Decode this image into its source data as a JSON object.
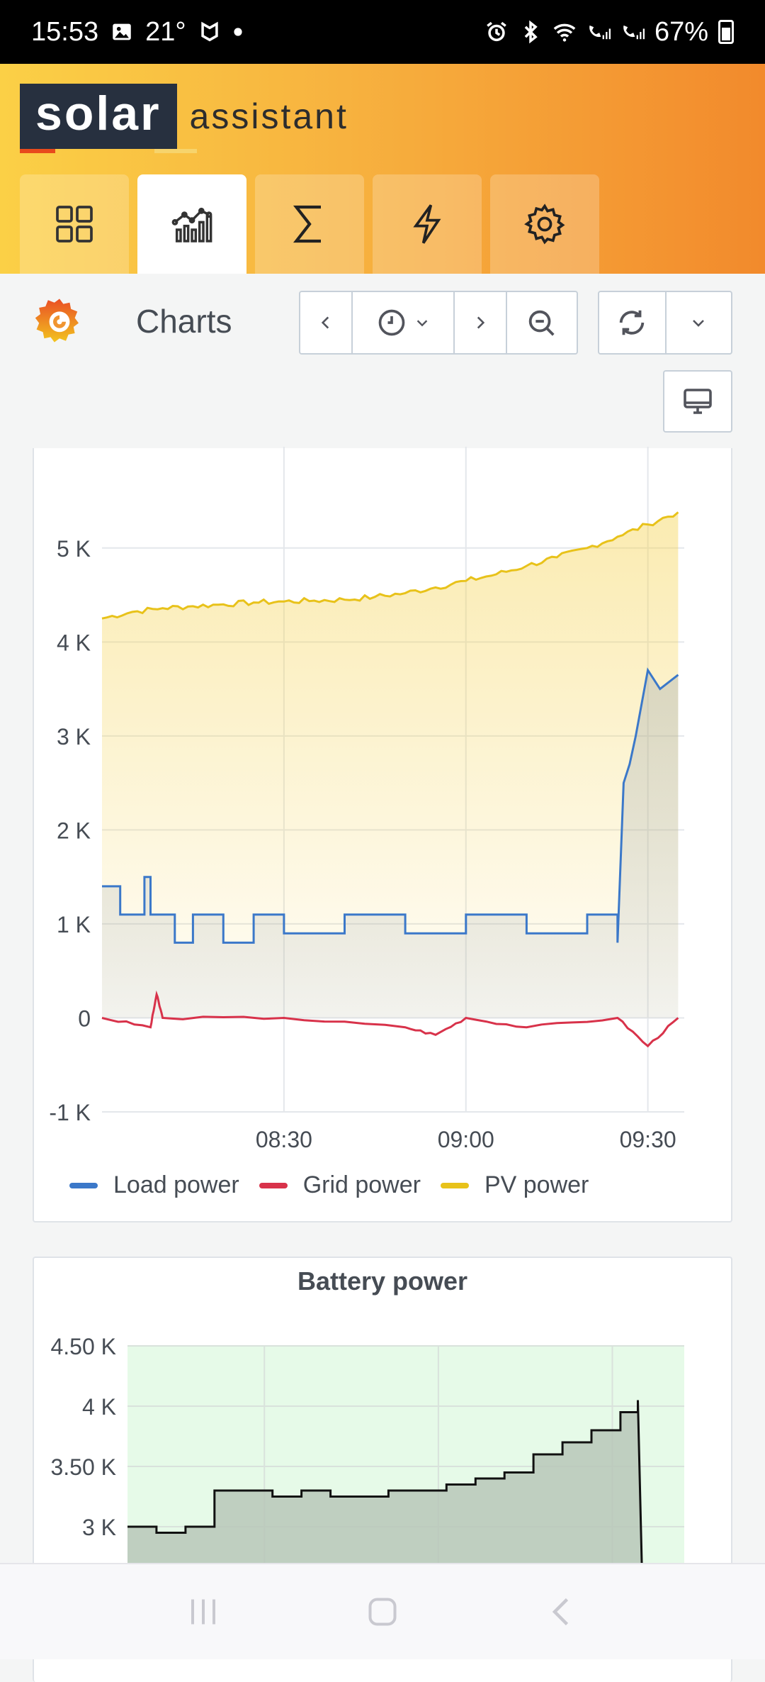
{
  "status_bar": {
    "time": "15:53",
    "temperature": "21°",
    "battery_percent": "67%"
  },
  "header": {
    "logo_primary": "solar",
    "logo_secondary": "assistant",
    "tabs": [
      {
        "icon": "dashboard-grid-icon"
      },
      {
        "icon": "chart-line-icon",
        "active": true
      },
      {
        "icon": "sigma-totals-icon"
      },
      {
        "icon": "lightning-bolt-icon"
      },
      {
        "icon": "gear-icon"
      }
    ]
  },
  "toolbar": {
    "title": "Charts",
    "buttons": [
      "chevron-left-icon",
      "clock-icon",
      "chevron-right-icon",
      "zoom-out-icon",
      "refresh-icon",
      "chevron-down-icon",
      "monitor-icon"
    ]
  },
  "chart_data": [
    {
      "type": "area",
      "title": "",
      "y_ticks": [
        "5 K",
        "4 K",
        "3 K",
        "2 K",
        "1 K",
        "0",
        "-1 K"
      ],
      "ylim": [
        -1000,
        5700
      ],
      "x_ticks": [
        "08:30",
        "09:00",
        "09:30"
      ],
      "xlim_minutes": [
        480,
        576
      ],
      "legend": [
        "Load power",
        "Grid power",
        "PV power"
      ],
      "series": [
        {
          "name": "PV power",
          "color": "#e8c21a",
          "x": [
            "08:00",
            "08:05",
            "08:10",
            "08:15",
            "08:20",
            "08:25",
            "08:30",
            "08:35",
            "08:40",
            "08:45",
            "08:50",
            "08:55",
            "09:00",
            "09:05",
            "09:10",
            "09:15",
            "09:20",
            "09:25",
            "09:30",
            "09:35"
          ],
          "values": [
            4250,
            4320,
            4360,
            4380,
            4400,
            4420,
            4430,
            4440,
            4450,
            4480,
            4520,
            4580,
            4650,
            4720,
            4810,
            4900,
            5000,
            5120,
            5250,
            5380
          ]
        },
        {
          "name": "Load power",
          "color": "#3b78c9",
          "x": [
            "08:00",
            "08:03",
            "08:07",
            "08:08",
            "08:12",
            "08:15",
            "08:20",
            "08:25",
            "08:30",
            "08:40",
            "08:50",
            "09:00",
            "09:10",
            "09:20",
            "09:25",
            "09:26",
            "09:27",
            "09:28",
            "09:30",
            "09:32",
            "09:35"
          ],
          "values": [
            1400,
            1100,
            1500,
            1100,
            800,
            1100,
            800,
            1100,
            900,
            1100,
            900,
            1100,
            900,
            1100,
            800,
            2500,
            2700,
            3000,
            3700,
            3500,
            3650
          ]
        },
        {
          "name": "Grid power",
          "color": "#d8324a",
          "x": [
            "08:00",
            "08:08",
            "08:09",
            "08:10",
            "08:30",
            "08:50",
            "08:55",
            "09:00",
            "09:10",
            "09:25",
            "09:30",
            "09:35"
          ],
          "values": [
            0,
            -100,
            250,
            0,
            0,
            -100,
            -180,
            0,
            -100,
            0,
            -300,
            0
          ]
        }
      ]
    },
    {
      "type": "area",
      "title": "Battery power",
      "y_ticks": [
        "4.50 K",
        "4 K",
        "3.50 K",
        "3 K"
      ],
      "ylim": [
        2700,
        4500
      ],
      "series": [
        {
          "name": "",
          "color": "#111111",
          "x": [
            "08:00",
            "08:05",
            "08:10",
            "08:15",
            "08:20",
            "08:25",
            "08:30",
            "08:35",
            "08:40",
            "08:45",
            "08:50",
            "08:55",
            "09:00",
            "09:05",
            "09:10",
            "09:15",
            "09:20",
            "09:25",
            "09:28"
          ],
          "values": [
            3000,
            2950,
            3000,
            3300,
            3300,
            3250,
            3300,
            3250,
            3250,
            3300,
            3300,
            3350,
            3400,
            3450,
            3600,
            3700,
            3800,
            3950,
            4050
          ]
        }
      ]
    }
  ]
}
